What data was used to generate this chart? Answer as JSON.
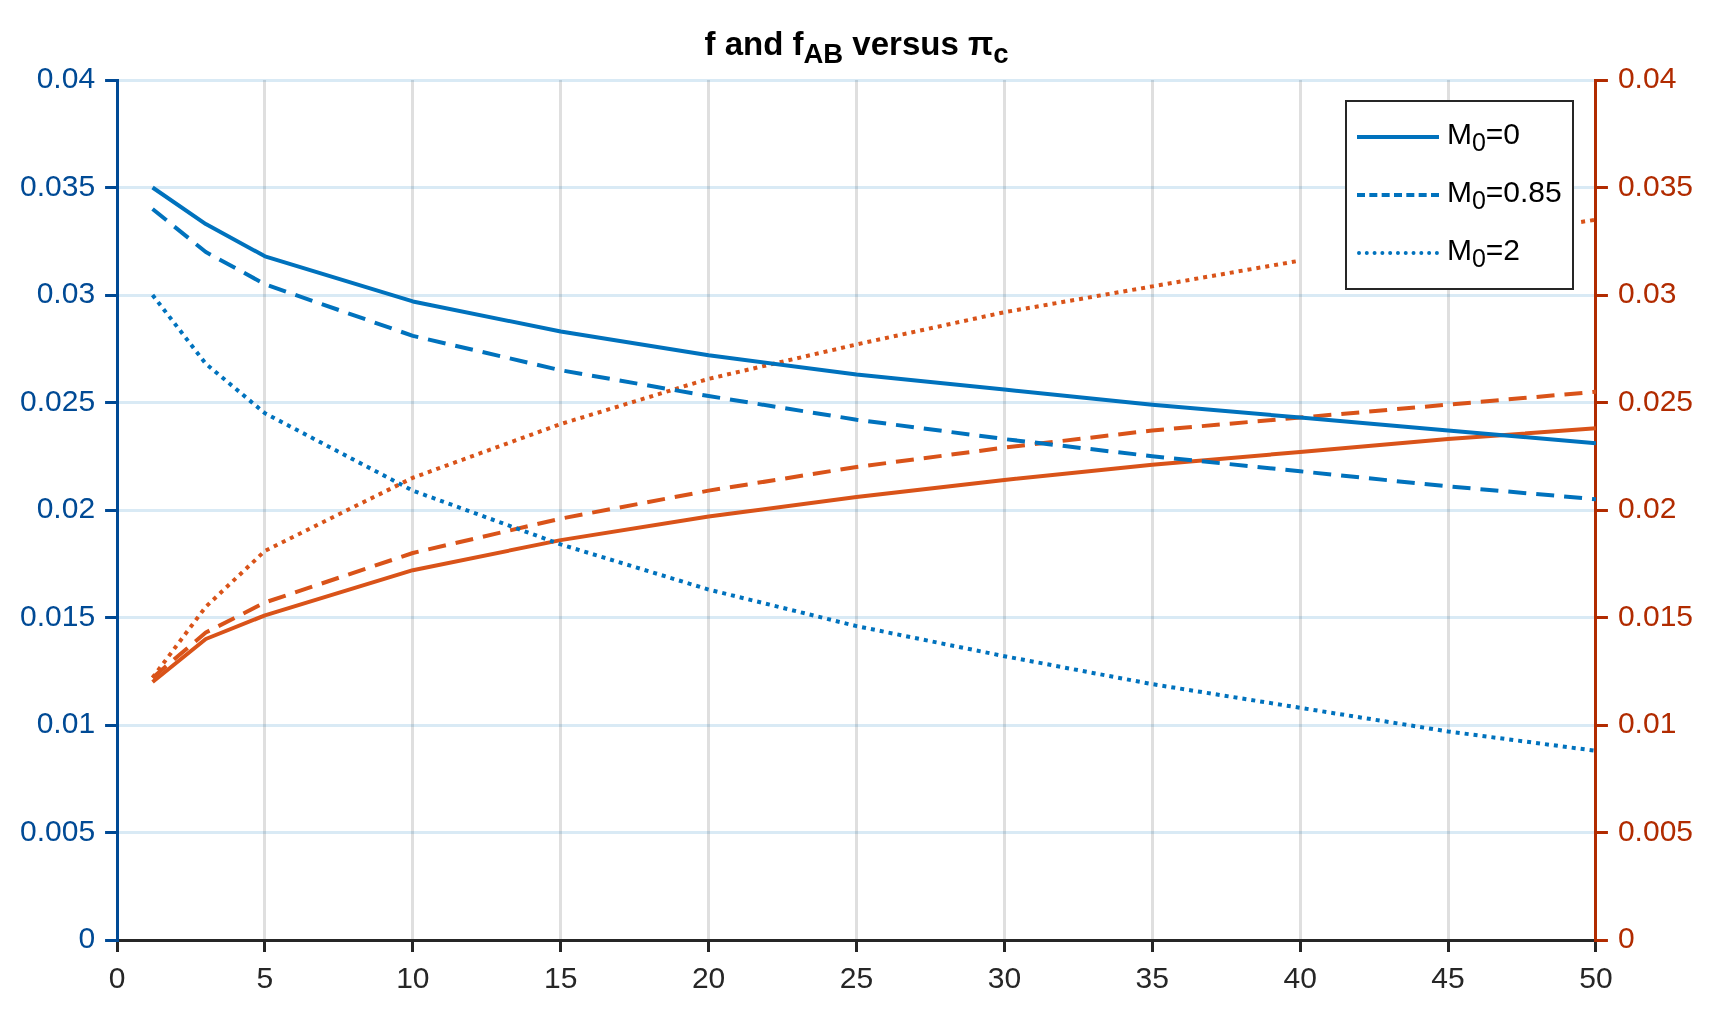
{
  "chart_data": {
    "type": "line",
    "title": "f and f$_{AB}$ versus π$_{c}$",
    "x": [
      1.2,
      3,
      5,
      10,
      15,
      20,
      25,
      30,
      35,
      40,
      45,
      50
    ],
    "xlim": [
      0,
      50
    ],
    "xticks": [
      0,
      5,
      10,
      15,
      20,
      25,
      30,
      35,
      40,
      45,
      50
    ],
    "ylim": [
      0,
      0.04
    ],
    "yticks": [
      0,
      0.005,
      0.01,
      0.015,
      0.02,
      0.025,
      0.03,
      0.035,
      0.04
    ],
    "y2lim": [
      0,
      0.04
    ],
    "y2ticks": [
      0,
      0.005,
      0.01,
      0.015,
      0.02,
      0.025,
      0.03,
      0.035,
      0.04
    ],
    "grid": true,
    "legend": "top right",
    "marker": "none",
    "series": [
      {
        "name": "M$_{0}$=0",
        "color": "#0072bd",
        "line_style": "solid",
        "values": [
          0.035,
          0.0333,
          0.0318,
          0.0297,
          0.0283,
          0.0272,
          0.0263,
          0.0256,
          0.0249,
          0.0243,
          0.0237,
          0.0231
        ]
      },
      {
        "name": "M$_{0}$=0.85",
        "color": "#0072bd",
        "line_style": "dashed",
        "values": [
          0.034,
          0.032,
          0.0305,
          0.0281,
          0.0265,
          0.0253,
          0.0242,
          0.0233,
          0.0225,
          0.0218,
          0.0211,
          0.0205
        ]
      },
      {
        "name": "M$_{0}$=2",
        "color": "#0072bd",
        "line_style": "dotted",
        "values": [
          0.03,
          0.0268,
          0.0245,
          0.0209,
          0.0184,
          0.0163,
          0.0146,
          0.0132,
          0.0119,
          0.0108,
          0.0097,
          0.0088
        ]
      },
      {
        "color": "#d95319",
        "line_style": "solid",
        "axis": "y2",
        "values": [
          0.012,
          0.014,
          0.0151,
          0.0172,
          0.0186,
          0.0197,
          0.0206,
          0.0214,
          0.0221,
          0.0227,
          0.0233,
          0.0238
        ]
      },
      {
        "color": "#d95319",
        "line_style": "dashed",
        "axis": "y2",
        "values": [
          0.0122,
          0.0143,
          0.0157,
          0.018,
          0.0196,
          0.0209,
          0.022,
          0.0229,
          0.0237,
          0.0243,
          0.0249,
          0.0255
        ]
      },
      {
        "color": "#d95319",
        "line_style": "dotted",
        "axis": "y2",
        "x": [
          1.2,
          3,
          5,
          10,
          15,
          20,
          25,
          30,
          35,
          40,
          45,
          49.5,
          50
        ],
        "values": [
          0.0122,
          0.0155,
          0.0181,
          0.0215,
          0.024,
          0.0261,
          0.0277,
          0.0292,
          0.0304,
          0.0316,
          null,
          0.0334,
          0.0335
        ]
      }
    ]
  }
}
